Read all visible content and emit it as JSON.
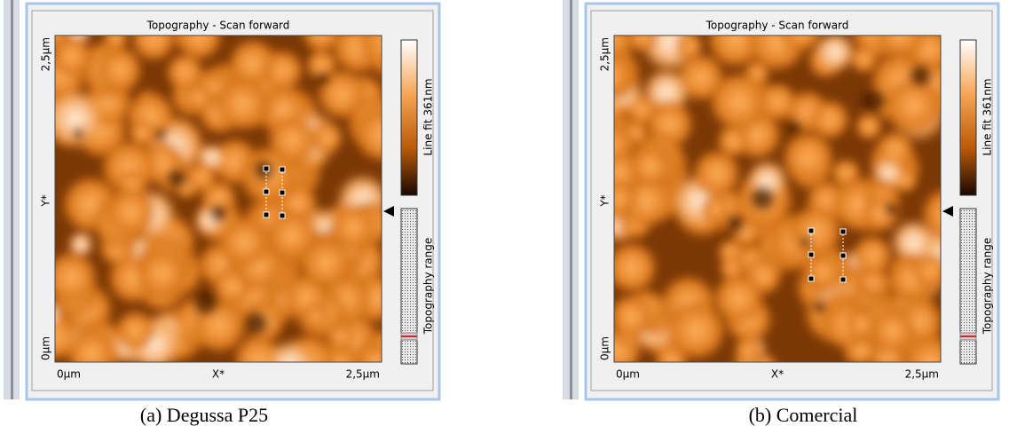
{
  "panels": [
    {
      "title": "Topography - Scan forward",
      "y_top": "2,5µm",
      "y_mid": "Y*",
      "y_bottom": "0µm",
      "x_left": "0µm",
      "x_mid": "X*",
      "x_right": "2,5µm",
      "colorbar_label": "Line fit 361nm",
      "range_label": "Topography range",
      "caption": "(a) Degussa P25"
    },
    {
      "title": "Topography - Scan forward",
      "y_top": "2,5µm",
      "y_mid": "Y*",
      "y_bottom": "0µm",
      "x_left": "0µm",
      "x_mid": "X*",
      "x_right": "2,5µm",
      "colorbar_label": "Line fit 361nm",
      "range_label": "Topography range",
      "caption": "(b) Comercial"
    }
  ]
}
